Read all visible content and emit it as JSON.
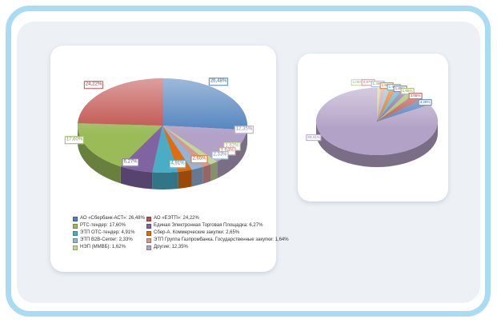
{
  "frame": {
    "border_color": "#a9dcf2",
    "panel_color": "#edf1f5",
    "card_color": "#ffffff"
  },
  "chart_data": [
    {
      "type": "pie",
      "style": "3d",
      "title": "",
      "legend_position": "bottom",
      "unit": "%",
      "series": [
        {
          "name": "АО «Сбербанк-АСТ»",
          "value": 26.48,
          "pct_label": "26,48%",
          "legend_label": "АО «Сбербанк-АСТ»: 26,48%",
          "color": "#4f81bd"
        },
        {
          "name": "АО «ЕЭТП»",
          "value": 24.22,
          "pct_label": "24,22%",
          "legend_label": "АО «ЕЭТП»: 24,22%",
          "color": "#c0504d"
        },
        {
          "name": "РТС-тендер",
          "value": 17.6,
          "pct_label": "17,60%",
          "legend_label": "РТС-тендер: 17,60%",
          "color": "#9bbb59"
        },
        {
          "name": "Единая Электронная Торговая Площадка",
          "value": 6.27,
          "pct_label": "6,27%",
          "legend_label": "Единая Электронная Торговая Площадка: 6,27%",
          "color": "#8064a2"
        },
        {
          "name": "ЭТП ОТС-тендер",
          "value": 4.91,
          "pct_label": "4,91%",
          "legend_label": "ЭТП ОТС-тендер: 4,91%",
          "color": "#4bacc6"
        },
        {
          "name": "Сбер-А. Коммерческие закупки",
          "value": 2.65,
          "pct_label": "2,65%",
          "legend_label": "Сбер-А. Коммерческие закупки: 2,65%",
          "color": "#e36c0a"
        },
        {
          "name": "ЭТП B2B-Center",
          "value": 2.33,
          "pct_label": "2,33%",
          "legend_label": "ЭТП B2B-Center: 2,33%",
          "color": "#95b3d7"
        },
        {
          "name": "ЭТП Группа Газпромбанка. Государственные закупки",
          "value": 1.64,
          "pct_label": "1,64%",
          "legend_label": "ЭТП Группа Газпромбанка. Государственные закупки: 1,64%",
          "color": "#d99694"
        },
        {
          "name": "НЭП (ММВБ)",
          "value": 1.62,
          "pct_label": "1,62%",
          "legend_label": "НЭП (ММВБ): 1,62%",
          "color": "#c3d69b"
        },
        {
          "name": "Другие",
          "value": 12.35,
          "pct_label": "12,35%",
          "legend_label": "Другие: 12,35%",
          "color": "#b3a2c7"
        }
      ]
    },
    {
      "type": "pie",
      "style": "3d",
      "title": "",
      "legend_position": "none",
      "unit": "%",
      "values_estimated": true,
      "series": [
        {
          "name": "АО «Сбербанк-АСТ»",
          "value": 3.28,
          "pct_label": "3,28%",
          "color": "#4f81bd"
        },
        {
          "name": "АО «ЕЭТП»",
          "value": 3.05,
          "pct_label": "3,05%",
          "color": "#c0504d"
        },
        {
          "name": "РТС-тендер",
          "value": 1.95,
          "pct_label": "1,95%",
          "color": "#9bbb59"
        },
        {
          "name": "Единая Электронная Торговая Площадка",
          "value": 1.85,
          "pct_label": "1,85%",
          "color": "#8064a2"
        },
        {
          "name": "ЭТП ОТС-тендер",
          "value": 1.45,
          "pct_label": "1,45%",
          "color": "#4bacc6"
        },
        {
          "name": "Сбер-А. Коммерческие закупки",
          "value": 1.6,
          "pct_label": "1,60%",
          "color": "#e36c0a"
        },
        {
          "name": "ЭТП B2B-Center",
          "value": 1.39,
          "pct_label": "1,39%",
          "color": "#95b3d7"
        },
        {
          "name": "ЭТП Группа Газпромбанка. Государственные закупки",
          "value": 0.97,
          "pct_label": "0,97%",
          "color": "#d99694"
        },
        {
          "name": "НЭП (ММВБ)",
          "value": 1.05,
          "pct_label": "1,05%",
          "color": "#c3d69b"
        },
        {
          "name": "Другие",
          "value": 83.41,
          "pct_label": "83,41%",
          "color": "#b3a2c7"
        }
      ]
    }
  ]
}
